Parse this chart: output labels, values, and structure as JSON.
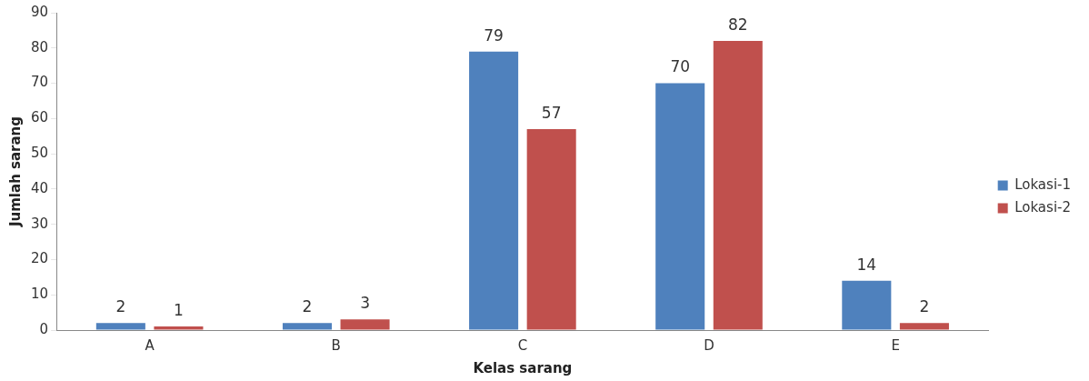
{
  "chart_data": {
    "type": "bar",
    "xlabel": "Kelas sarang",
    "ylabel": "Jumlah sarang",
    "categories": [
      "A",
      "B",
      "C",
      "D",
      "E"
    ],
    "series": [
      {
        "name": "Lokasi-1",
        "color": "#4f81bd",
        "values": [
          2,
          2,
          79,
          70,
          14
        ]
      },
      {
        "name": "Lokasi-2",
        "color": "#c0504d",
        "values": [
          1,
          3,
          57,
          82,
          2
        ]
      }
    ],
    "ylim": [
      0,
      90
    ],
    "yticks": [
      0,
      10,
      20,
      30,
      40,
      50,
      60,
      70,
      80,
      90
    ],
    "grid": false,
    "legend": "right",
    "data_labels": true
  }
}
